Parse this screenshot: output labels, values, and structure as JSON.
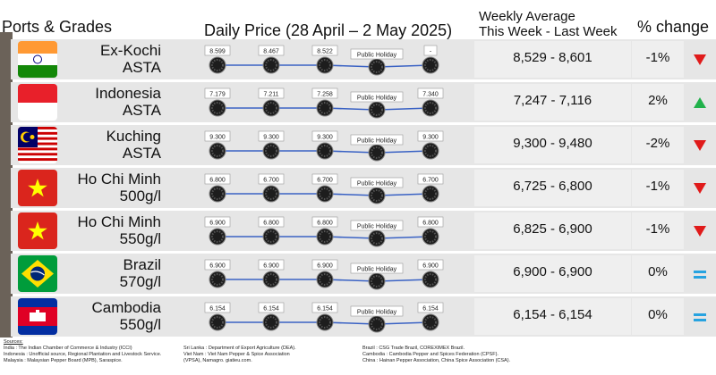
{
  "headers": {
    "ports": "Ports & Grades",
    "daily": "Daily Price (28 April – 2 May 2025)",
    "weekly_line1": "Weekly Average",
    "weekly_line2": "This Week - Last Week",
    "pct": "% change"
  },
  "chart_data": {
    "type": "table",
    "days": 5,
    "rows": [
      {
        "line1": "Ex-Kochi",
        "line2": "ASTA",
        "flag": "india-flag",
        "prices": [
          "8.599",
          "8.467",
          "8.522",
          "Public Holiday",
          "-"
        ],
        "weekly": "8,529 - 8,601",
        "pct": "-1%",
        "trend": "down"
      },
      {
        "line1": "Indonesia",
        "line2": "ASTA",
        "flag": "indonesia-flag",
        "prices": [
          "7.179",
          "7.211",
          "7.258",
          "Public Holiday",
          "7.340"
        ],
        "weekly": "7,247 - 7,116",
        "pct": "2%",
        "trend": "up"
      },
      {
        "line1": "Kuching",
        "line2": "ASTA",
        "flag": "malaysia-flag",
        "prices": [
          "9.300",
          "9.300",
          "9.300",
          "Public Holiday",
          "9.300"
        ],
        "weekly": "9,300 - 9,480",
        "pct": "-2%",
        "trend": "down"
      },
      {
        "line1": "Ho Chi Minh",
        "line2": "500g/l",
        "flag": "vietnam-flag",
        "prices": [
          "6.800",
          "6.700",
          "6.700",
          "Public Holiday",
          "6.700"
        ],
        "weekly": "6,725 - 6,800",
        "pct": "-1%",
        "trend": "down"
      },
      {
        "line1": "Ho Chi Minh",
        "line2": "550g/l",
        "flag": "vietnam-flag",
        "prices": [
          "6.900",
          "6.800",
          "6.800",
          "Public Holiday",
          "6.800"
        ],
        "weekly": "6,825 - 6,900",
        "pct": "-1%",
        "trend": "down"
      },
      {
        "line1": "Brazil",
        "line2": "570g/l",
        "flag": "brazil-flag",
        "prices": [
          "6.900",
          "6.900",
          "6.900",
          "Public Holiday",
          "6.900"
        ],
        "weekly": "6,900 - 6,900",
        "pct": "0%",
        "trend": "flat"
      },
      {
        "line1": "Cambodia",
        "line2": "550g/l",
        "flag": "cambodia-flag",
        "prices": [
          "6.154",
          "6.154",
          "6.154",
          "Public Holiday",
          "6.154"
        ],
        "weekly": "6,154 - 6,154",
        "pct": "0%",
        "trend": "flat"
      }
    ]
  },
  "colors": {
    "up": "#21b14b",
    "down": "#e01b1b",
    "flat": "#27a3e0",
    "line": "#3a62c4"
  },
  "sources": {
    "title": "Sources:",
    "col1": [
      "India : The Indian Chamber of Commerce & Industry (ICCI)",
      "Indonesia : Unofficial source, Regional Plantation and Livestock Service.",
      "Malaysia : Malaysian Pepper Board (MPB), Saraspice."
    ],
    "col2": [
      "Sri Lanka : Department of Export Agriculture (DEA).",
      "Viet Nam : Viet Nam Pepper & Spice Association (VPSA), Namagro. giatieu.com."
    ],
    "col3": [
      "Brazil : CSG Trade Brazil, COREXIMEX Brazil.",
      "Cambodia : Cambodia Pepper and Spices Federation (CPSF).",
      "China : Hainan Pepper Association, China Spice Association (CSA)."
    ]
  }
}
